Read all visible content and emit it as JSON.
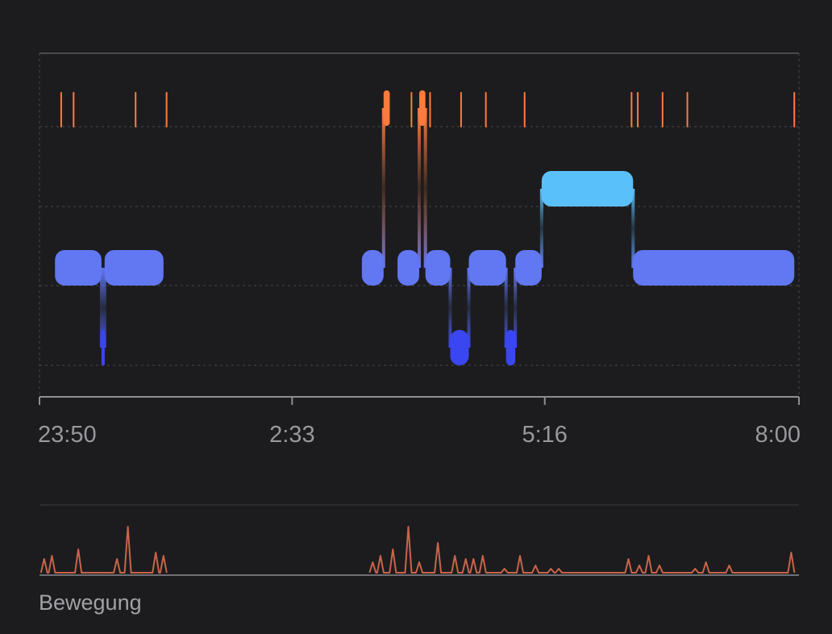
{
  "chart_data": {
    "type": "sleep-stages",
    "x_range": [
      "23:50",
      "8:00"
    ],
    "x_ticks": [
      "23:50",
      "2:33",
      "5:16",
      "8:00"
    ],
    "stages": [
      "awake",
      "rem",
      "core",
      "deep"
    ],
    "stage_colors": {
      "awake": "#ff7b3d",
      "rem": "#5ac0fa",
      "core": "#6277f2",
      "deep": "#3a46f0"
    },
    "grid": true,
    "segments": [
      {
        "stage": "core",
        "start": "0:00",
        "end": "0:30"
      },
      {
        "stage": "deep",
        "start": "0:30",
        "end": "0:32"
      },
      {
        "stage": "core",
        "start": "0:32",
        "end": "1:10"
      },
      {
        "stage": "core",
        "start": "3:18",
        "end": "3:32"
      },
      {
        "stage": "awake",
        "start": "3:32",
        "end": "3:36"
      },
      {
        "stage": "core",
        "start": "3:41",
        "end": "3:55"
      },
      {
        "stage": "awake",
        "start": "3:55",
        "end": "3:59"
      },
      {
        "stage": "core",
        "start": "3:59",
        "end": "4:15"
      },
      {
        "stage": "deep",
        "start": "4:15",
        "end": "4:27"
      },
      {
        "stage": "core",
        "start": "4:27",
        "end": "4:51"
      },
      {
        "stage": "deep",
        "start": "4:51",
        "end": "4:57"
      },
      {
        "stage": "core",
        "start": "4:57",
        "end": "5:14"
      },
      {
        "stage": "rem",
        "start": "5:14",
        "end": "6:13"
      },
      {
        "stage": "core",
        "start": "6:13",
        "end": "7:57"
      }
    ],
    "awake_markers": [
      "0:04",
      "0:12",
      "0:52",
      "1:12",
      "3:50",
      "4:02",
      "4:22",
      "4:38",
      "5:03",
      "6:12",
      "6:16",
      "6:32",
      "6:48",
      "7:57"
    ],
    "movement": {
      "label": "Bewegung",
      "series": [
        {
          "t": "23:53",
          "v": 0.25
        },
        {
          "t": "23:58",
          "v": 0.3
        },
        {
          "t": "0:15",
          "v": 0.4
        },
        {
          "t": "0:40",
          "v": 0.25
        },
        {
          "t": "0:47",
          "v": 0.75
        },
        {
          "t": "1:05",
          "v": 0.35
        },
        {
          "t": "1:10",
          "v": 0.3
        },
        {
          "t": "3:25",
          "v": 0.2
        },
        {
          "t": "3:30",
          "v": 0.3
        },
        {
          "t": "3:38",
          "v": 0.4
        },
        {
          "t": "3:48",
          "v": 0.75
        },
        {
          "t": "3:55",
          "v": 0.2
        },
        {
          "t": "4:07",
          "v": 0.5
        },
        {
          "t": "4:18",
          "v": 0.3
        },
        {
          "t": "4:25",
          "v": 0.25
        },
        {
          "t": "4:30",
          "v": 0.25
        },
        {
          "t": "4:36",
          "v": 0.3
        },
        {
          "t": "4:50",
          "v": 0.1
        },
        {
          "t": "5:00",
          "v": 0.3
        },
        {
          "t": "5:10",
          "v": 0.15
        },
        {
          "t": "5:20",
          "v": 0.1
        },
        {
          "t": "5:25",
          "v": 0.1
        },
        {
          "t": "6:10",
          "v": 0.25
        },
        {
          "t": "6:17",
          "v": 0.15
        },
        {
          "t": "6:23",
          "v": 0.3
        },
        {
          "t": "6:30",
          "v": 0.15
        },
        {
          "t": "6:53",
          "v": 0.1
        },
        {
          "t": "7:00",
          "v": 0.2
        },
        {
          "t": "7:15",
          "v": 0.15
        },
        {
          "t": "7:55",
          "v": 0.35
        }
      ]
    }
  }
}
